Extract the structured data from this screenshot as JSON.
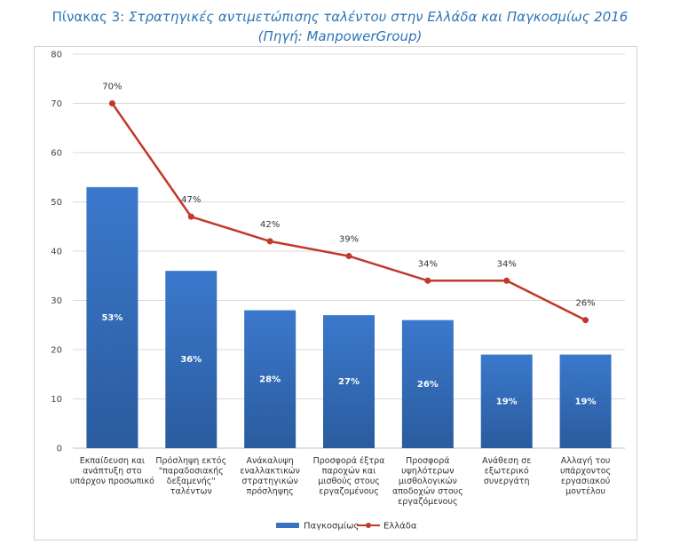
{
  "page": {
    "title_line1_prefix": "Πίνακας 3: ",
    "title_line1_italic": "Στρατηγικές αντιμετώπισης ταλέντου στην Ελλάδα και Παγκοσμίως 2016",
    "title_line2": "(Πηγή: ManpowerGroup)"
  },
  "chart_data": {
    "type": "bar",
    "categories": [
      [
        "Εκπαίδευση και",
        "ανάπτυξη στο",
        "υπάρχον προσωπικό"
      ],
      [
        "Πρόσληψη εκτός",
        "\"παραδοσιακής",
        "δεξαμενής\"",
        "ταλέντων"
      ],
      [
        "Ανάκαλυψη",
        "εναλλακτικών",
        "στρατηγικών",
        "πρόσληψης"
      ],
      [
        "Προσφορά έξτρα",
        "παροχών και",
        "μισθούς στους",
        "εργαζομένους"
      ],
      [
        "Προσφορά",
        "υψηλότερων",
        "μισθολογικών",
        "αποδοχών στους",
        "εργαζόμενους"
      ],
      [
        "Ανάθεση σε",
        "εξωτερικό",
        "συνεργάτη"
      ],
      [
        "Αλλαγή του",
        "υπάρχοντος",
        "εργασιακού",
        "μοντέλου"
      ]
    ],
    "series": [
      {
        "name": "Παγκοσμίως",
        "type": "bar",
        "color": "#3A72C2",
        "values": [
          53,
          36,
          28,
          27,
          26,
          19,
          19
        ],
        "labels": [
          "53%",
          "36%",
          "28%",
          "27%",
          "26%",
          "19%",
          "19%"
        ]
      },
      {
        "name": "Ελλάδα",
        "type": "line",
        "color": "#C0392B",
        "values": [
          70,
          47,
          42,
          39,
          34,
          34,
          26
        ],
        "labels": [
          "70%",
          "47%",
          "42%",
          "39%",
          "34%",
          "34%",
          "26%"
        ]
      }
    ],
    "y_ticks": [
      "0",
      "10",
      "20",
      "30",
      "40",
      "50",
      "60",
      "70",
      "80"
    ],
    "ylim": [
      0,
      80
    ],
    "grid": true,
    "legend_position": "bottom"
  }
}
